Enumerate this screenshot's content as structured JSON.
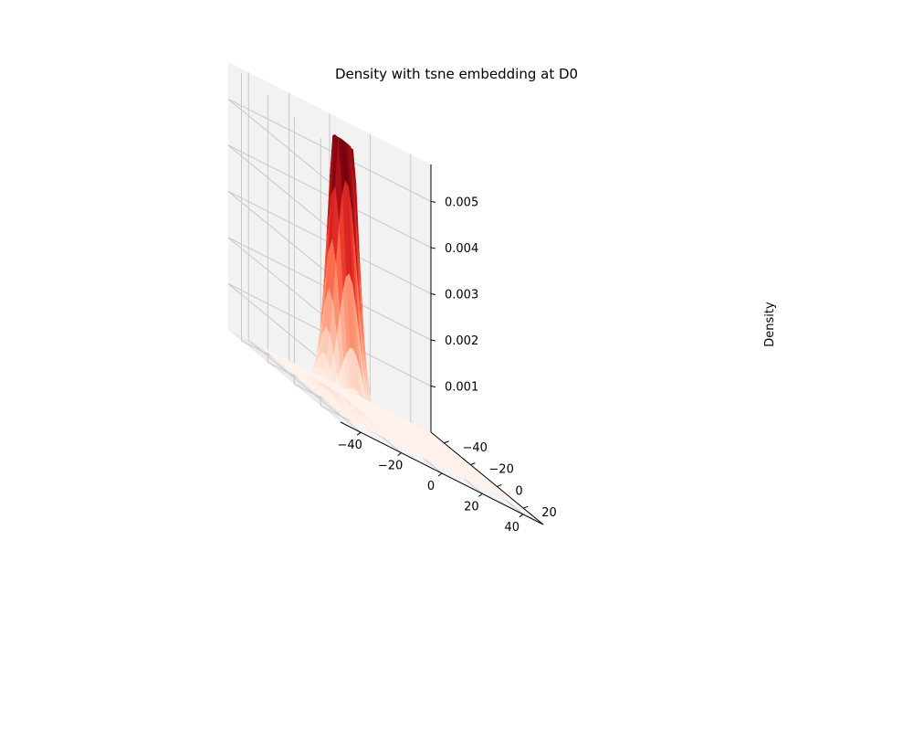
{
  "chart_data": {
    "type": "surface3d",
    "title": "Density with tsne embedding at D0",
    "xlabel": "",
    "ylabel": "",
    "zlabel": "Density",
    "colormap": "Reds",
    "colors": {
      "pane": "#f2f2f2",
      "grid": "#c8c8c8",
      "axis_line": "#000000"
    },
    "grid": true,
    "xlim": [
      -50,
      50
    ],
    "ylim": [
      -50,
      35
    ],
    "zlim": [
      0,
      0.0058
    ],
    "xticks": [
      -40,
      -20,
      0,
      20,
      40
    ],
    "xtick_labels": [
      "−40",
      "−20",
      "0",
      "20",
      "40"
    ],
    "yticks": [
      -40,
      -20,
      0,
      20
    ],
    "ytick_labels": [
      "−40",
      "−20",
      "0",
      "20"
    ],
    "zticks": [
      0.001,
      0.002,
      0.003,
      0.004,
      0.005
    ],
    "ztick_labels": [
      "0.001",
      "0.002",
      "0.003",
      "0.004",
      "0.005"
    ],
    "peaks": [
      {
        "x": -30,
        "y": 8,
        "z": 0.0052
      },
      {
        "x": -28,
        "y": 2,
        "z": 0.005
      },
      {
        "x": -24,
        "y": -4,
        "z": 0.004
      }
    ],
    "base_density": 0.0001
  }
}
